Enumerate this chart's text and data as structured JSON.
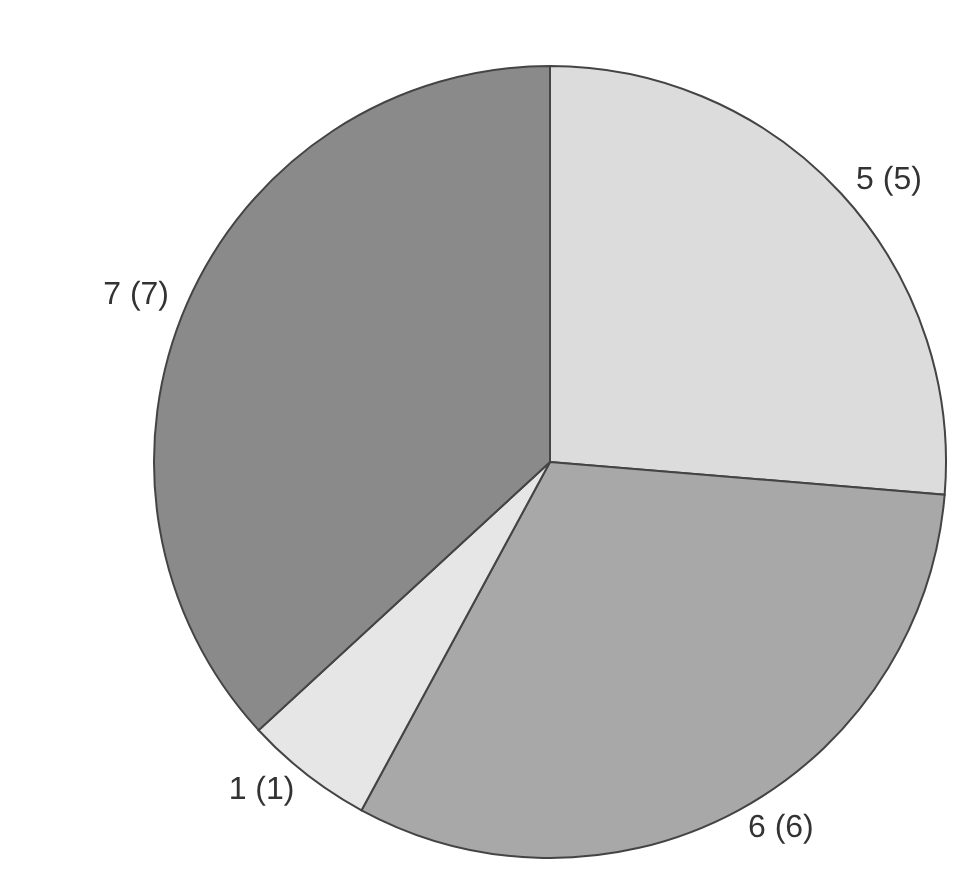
{
  "chart_data": {
    "type": "pie",
    "categories": [
      null,
      null,
      null,
      null
    ],
    "values": [
      5,
      6,
      1,
      7
    ],
    "colors": [
      "#dcdcdc",
      "#a8a8a8",
      "#e6e6e6",
      "#8a8a8a"
    ],
    "value_labels": [
      "5 (5)",
      "6 (6)",
      "1 (1)",
      "7 (7)"
    ],
    "legend": false
  }
}
